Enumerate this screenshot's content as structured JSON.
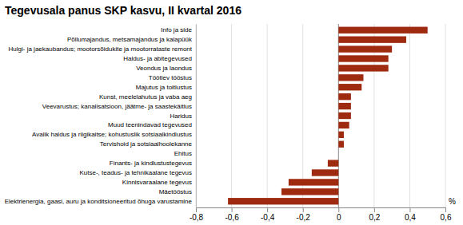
{
  "chart_data": {
    "type": "bar",
    "orientation": "horizontal",
    "title": "Tegevusala panus SKP kasvu, II kvartal 2016",
    "xlabel": "%",
    "categories": [
      "Info ja side",
      "Põllumajandus, metsamajandus ja kalapüük",
      "Hulgi- ja jaekaubandus; mootorsõidukite ja mootorrataste remont",
      "Haldus- ja abitegevused",
      "Veondus ja laondus",
      "Töötlev tööstus",
      "Majutus ja toitlustus",
      "Kunst, meelelahutus ja vaba aeg",
      "Veevarustus; kanalisatsioon, jäätme- ja saastekäitlus",
      "Haridus",
      "Muud teenindavad tegevused",
      "Avalik haldus ja riigikaitse; kohustuslik sotsiaalkindlustus",
      "Tervishoid ja sotsiaalhoolekanne",
      "Ehitus",
      "Finants- ja kindlustustegevus",
      "Kutse-, teadus- ja tehnikaalane tegevus",
      "Kinnisvaraalane tegevus",
      "Mäetööstus",
      "Elektrienergia, gaasi, auru ja konditsioneeritud õhuga varustamine"
    ],
    "values": [
      0.5,
      0.38,
      0.3,
      0.28,
      0.28,
      0.14,
      0.13,
      0.07,
      0.07,
      0.07,
      0.06,
      0.03,
      0.03,
      0.0,
      -0.06,
      -0.15,
      -0.28,
      -0.32,
      -0.62
    ],
    "color": "#9e2a0f",
    "xlim": [
      -0.8,
      0.6
    ],
    "xticks": [
      {
        "value": -0.8,
        "label": "-0,8"
      },
      {
        "value": -0.6,
        "label": "-0,6"
      },
      {
        "value": -0.4,
        "label": "-0,4"
      },
      {
        "value": -0.2,
        "label": "-0,2"
      },
      0,
      {
        "value": 0.2,
        "label": "0,2"
      },
      {
        "value": 0.4,
        "label": "0,4"
      },
      {
        "value": 0.6,
        "label": "0,6"
      }
    ],
    "grid": true
  }
}
